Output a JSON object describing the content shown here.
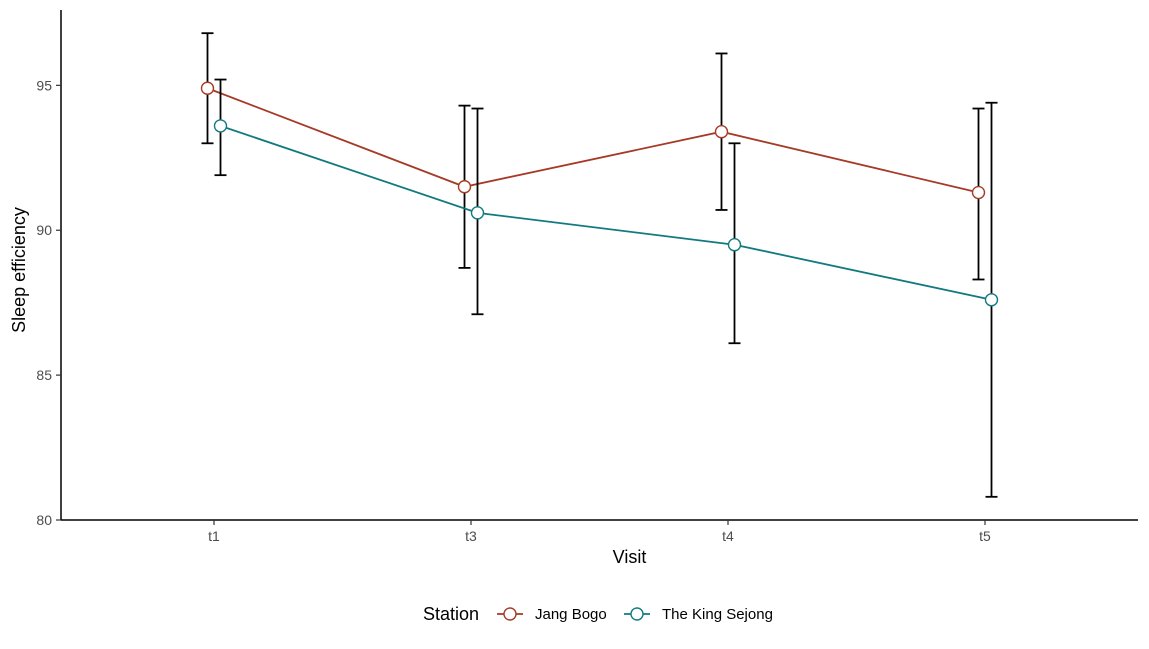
{
  "chart_data": {
    "type": "line",
    "xlabel": "Visit",
    "ylabel": "Sleep efficiency",
    "categories": [
      "t1",
      "t3",
      "t4",
      "t5"
    ],
    "ylim": [
      80,
      97.6
    ],
    "yticks": [
      80,
      85,
      90,
      95
    ],
    "error_bars": true,
    "grid": false,
    "legend": {
      "title": "Station",
      "position": "bottom"
    },
    "series": [
      {
        "name": "Jang Bogo",
        "color": "#a63a26",
        "values": [
          94.9,
          91.5,
          93.4,
          91.3
        ],
        "lower": [
          93.0,
          88.7,
          90.7,
          88.3
        ],
        "upper": [
          96.8,
          94.3,
          96.1,
          94.2
        ]
      },
      {
        "name": "The King Sejong",
        "color": "#117a80",
        "values": [
          93.6,
          90.6,
          89.5,
          87.6
        ],
        "lower": [
          91.9,
          87.1,
          86.1,
          80.8
        ],
        "upper": [
          95.2,
          94.2,
          93.0,
          94.4
        ]
      }
    ]
  }
}
